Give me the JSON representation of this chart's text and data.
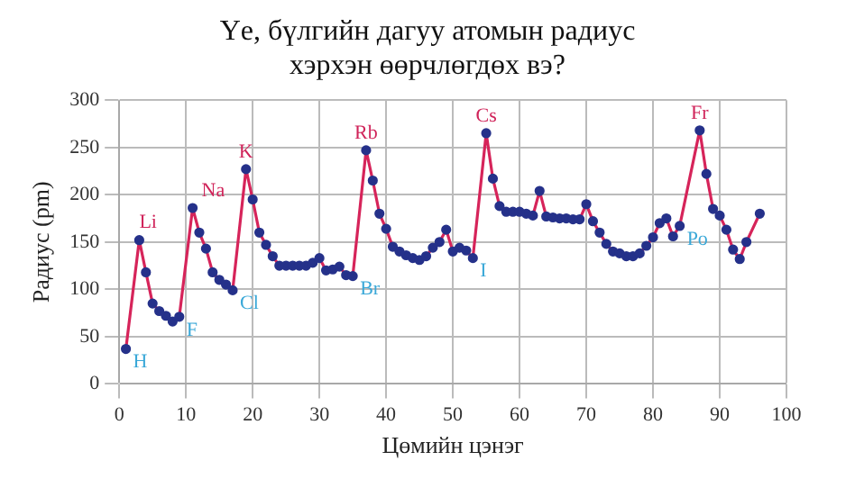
{
  "chart_data": {
    "type": "line",
    "title": "Үе, бүлгийн дагуу атомын радиус хэрхэн өөрчлөгдөх вэ?",
    "xlabel": "Цөмийн цэнэг",
    "ylabel": "Радиус (pm)",
    "series": [
      {
        "color": "#d6245a",
        "x": [
          1,
          3,
          4,
          5,
          6,
          7,
          8,
          9,
          11,
          12,
          13,
          14,
          15,
          16,
          17,
          19,
          20,
          21,
          22,
          23,
          24,
          25,
          26,
          27,
          28,
          29,
          30,
          31,
          32,
          33,
          34,
          35,
          37,
          38,
          39,
          40,
          41,
          42,
          43,
          44,
          45,
          46,
          47,
          48,
          49,
          50,
          51,
          52,
          53,
          55,
          56,
          57,
          58,
          59,
          60,
          61,
          62,
          63,
          64,
          65,
          66,
          67,
          68,
          69,
          70,
          71,
          72,
          73,
          74,
          75,
          76,
          77,
          78,
          79,
          80,
          81,
          82,
          83,
          84,
          87,
          88,
          89,
          90,
          91,
          92,
          93,
          94,
          96
        ],
        "values": [
          37,
          152,
          118,
          85,
          77,
          72,
          66,
          71,
          186,
          160,
          143,
          118,
          110,
          105,
          99,
          227,
          195,
          160,
          147,
          135,
          125,
          125,
          125,
          125,
          125,
          128,
          133,
          120,
          121,
          124,
          115,
          114,
          247,
          215,
          180,
          164,
          145,
          140,
          136,
          133,
          131,
          135,
          144,
          150,
          163,
          140,
          144,
          141,
          133,
          265,
          217,
          188,
          182,
          182,
          182,
          180,
          178,
          204,
          177,
          176,
          175,
          175,
          174,
          174,
          190,
          172,
          160,
          148,
          140,
          138,
          135,
          135,
          138,
          146,
          155,
          170,
          175,
          156,
          167,
          268,
          222,
          185,
          178,
          163,
          142,
          132,
          150,
          180
        ]
      }
    ],
    "xlim": [
      0,
      100
    ],
    "xticks": [
      0,
      10,
      20,
      30,
      40,
      50,
      60,
      70,
      80,
      90,
      100
    ],
    "ylim": [
      0,
      300
    ],
    "yticks": [
      0,
      50,
      100,
      150,
      200,
      250,
      300
    ],
    "grid": true,
    "marker": "circle",
    "line_style": "solid",
    "annotations": [
      {
        "text": "H",
        "x": 1,
        "y": 37
      },
      {
        "text": "Li",
        "x": 3,
        "y": 152
      },
      {
        "text": "F",
        "x": 9,
        "y": 71
      },
      {
        "text": "Na",
        "x": 11,
        "y": 186
      },
      {
        "text": "Cl",
        "x": 17,
        "y": 99
      },
      {
        "text": "K",
        "x": 19,
        "y": 227
      },
      {
        "text": "Rb",
        "x": 37,
        "y": 247
      },
      {
        "text": "Br",
        "x": 35,
        "y": 114
      },
      {
        "text": "Cs",
        "x": 55,
        "y": 265
      },
      {
        "text": "I",
        "x": 53,
        "y": 133
      },
      {
        "text": "Fr",
        "x": 87,
        "y": 268
      },
      {
        "text": "Po",
        "x": 84,
        "y": 167
      }
    ]
  }
}
